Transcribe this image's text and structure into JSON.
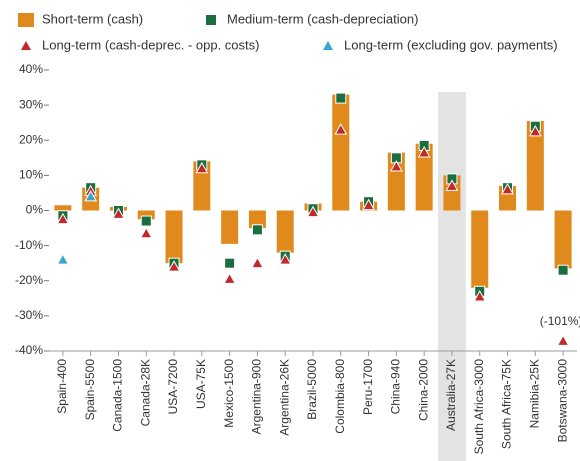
{
  "chart_data": {
    "type": "bar",
    "categories": [
      "Spain-400",
      "Spain-5500",
      "Canada-1500",
      "Canada-28K",
      "USA-7200",
      "USA-75K",
      "Mexico-1500",
      "Argentina-900",
      "Argentina-26K",
      "Brazil-5000",
      "Colombia-800",
      "Peru-1700",
      "China-940",
      "China-2000",
      "Australia-27K",
      "South Africa-3000",
      "South Africa-75K",
      "Namibia-25K",
      "Botswana-3000"
    ],
    "series": [
      {
        "name": "Short-term (cash)",
        "color": "#e08a1e",
        "marker": "bar",
        "values": [
          1.5,
          6.5,
          1,
          -2.5,
          -15,
          14,
          -9.5,
          -5,
          -12,
          2,
          33,
          2.5,
          16.5,
          19,
          10,
          -22,
          7,
          25.5,
          -16.5
        ]
      },
      {
        "name": "Medium-term (cash-depreciation)",
        "color": "#1a6e40",
        "marker": "square",
        "values": [
          -1.5,
          6.5,
          0,
          -3,
          -15,
          13,
          -15,
          -5.5,
          -13,
          0.5,
          32,
          2.5,
          15,
          18.5,
          9,
          -23,
          6.5,
          24,
          -17
        ]
      },
      {
        "name": "Long-term (cash-deprec. - opp. costs)",
        "color": "#c0282a",
        "marker": "triangle",
        "values": [
          -2.5,
          5.5,
          -1,
          -6.5,
          -16,
          12,
          -19.5,
          -15,
          -14,
          -0.5,
          23,
          1.5,
          12.5,
          16.5,
          7,
          -24.5,
          6,
          22.5,
          -101
        ],
        "value_labels": [
          null,
          null,
          null,
          null,
          null,
          null,
          null,
          null,
          null,
          null,
          null,
          null,
          null,
          null,
          null,
          null,
          null,
          null,
          "(-101%)"
        ]
      },
      {
        "name": "Long-term (excluding gov. payments)",
        "color": "#3aa7c9",
        "marker": "triangle",
        "values": [
          -14,
          4,
          null,
          null,
          null,
          null,
          null,
          null,
          null,
          null,
          null,
          null,
          null,
          null,
          null,
          null,
          null,
          null,
          null
        ]
      }
    ],
    "ylim": [
      -40,
      40
    ],
    "yticks": [
      {
        "value": 40,
        "label": "40%"
      },
      {
        "value": 30,
        "label": "30%"
      },
      {
        "value": 20,
        "label": "20%"
      },
      {
        "value": 10,
        "label": "10%"
      },
      {
        "value": 0,
        "label": "0%"
      },
      {
        "value": -10,
        "label": "-10%"
      },
      {
        "value": -20,
        "label": "-20%"
      },
      {
        "value": -30,
        "label": "-30%"
      },
      {
        "value": -40,
        "label": "-40%"
      }
    ],
    "highlight": "Australia-27K",
    "legend": "top"
  }
}
